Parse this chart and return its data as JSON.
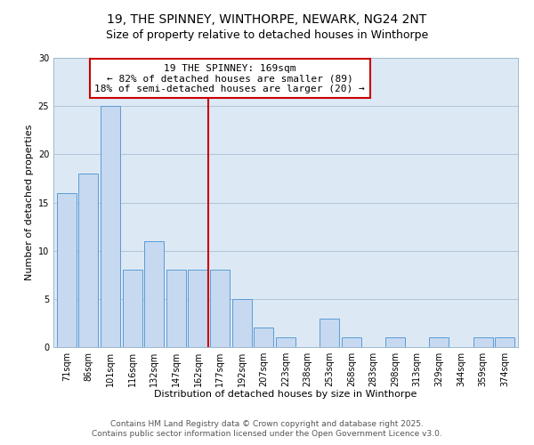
{
  "title1": "19, THE SPINNEY, WINTHORPE, NEWARK, NG24 2NT",
  "title2": "Size of property relative to detached houses in Winthorpe",
  "xlabel": "Distribution of detached houses by size in Winthorpe",
  "ylabel": "Number of detached properties",
  "bar_labels": [
    "71sqm",
    "86sqm",
    "101sqm",
    "116sqm",
    "132sqm",
    "147sqm",
    "162sqm",
    "177sqm",
    "192sqm",
    "207sqm",
    "223sqm",
    "238sqm",
    "253sqm",
    "268sqm",
    "283sqm",
    "298sqm",
    "313sqm",
    "329sqm",
    "344sqm",
    "359sqm",
    "374sqm"
  ],
  "bar_values": [
    16,
    18,
    25,
    8,
    11,
    8,
    8,
    8,
    5,
    2,
    1,
    0,
    3,
    1,
    0,
    1,
    0,
    1,
    0,
    1,
    1
  ],
  "bar_color": "#c6d9f0",
  "bar_edge_color": "#5b9bd5",
  "background_color": "#ffffff",
  "axes_facecolor": "#dce9f5",
  "grid_color": "#b0c4d8",
  "annotation_text_line1": "19 THE SPINNEY: 169sqm",
  "annotation_text_line2": "← 82% of detached houses are smaller (89)",
  "annotation_text_line3": "18% of semi-detached houses are larger (20) →",
  "annotation_box_color": "#ffffff",
  "annotation_box_edge_color": "#cc0000",
  "annotation_line_color": "#cc0000",
  "ylim": [
    0,
    30
  ],
  "yticks": [
    0,
    5,
    10,
    15,
    20,
    25,
    30
  ],
  "footer1": "Contains HM Land Registry data © Crown copyright and database right 2025.",
  "footer2": "Contains public sector information licensed under the Open Government Licence v3.0.",
  "title_fontsize": 10,
  "subtitle_fontsize": 9,
  "axis_label_fontsize": 8,
  "tick_fontsize": 7,
  "annotation_fontsize": 8,
  "footer_fontsize": 6.5
}
